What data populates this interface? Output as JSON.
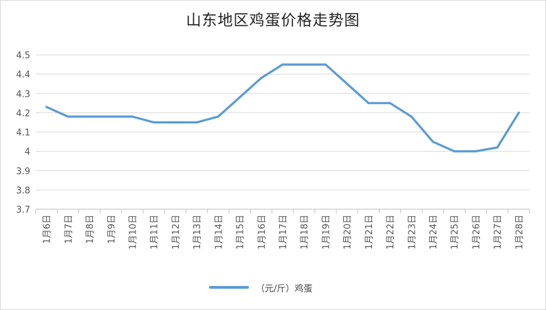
{
  "chart_data": {
    "type": "line",
    "title": "山东地区鸡蛋价格走势图",
    "xlabel": "",
    "ylabel": "",
    "categories": [
      "1月6日",
      "1月7日",
      "1月8日",
      "1月9日",
      "1月10日",
      "1月11日",
      "1月12日",
      "1月13日",
      "1月14日",
      "1月15日",
      "1月16日",
      "1月17日",
      "1月18日",
      "1月19日",
      "1月20日",
      "1月21日",
      "1月22日",
      "1月23日",
      "1月24日",
      "1月25日",
      "1月26日",
      "1月27日",
      "1月28日"
    ],
    "series": [
      {
        "name": "（元/斤）鸡蛋",
        "values": [
          4.23,
          4.18,
          4.18,
          4.18,
          4.18,
          4.15,
          4.15,
          4.15,
          4.18,
          4.28,
          4.38,
          4.45,
          4.45,
          4.45,
          4.35,
          4.25,
          4.25,
          4.18,
          4.05,
          4.0,
          4.0,
          4.02,
          4.2
        ],
        "color": "#5b9bd5"
      }
    ],
    "ylim": [
      3.7,
      4.5
    ],
    "yticks": [
      "3.7",
      "3.8",
      "3.9",
      "4",
      "4.1",
      "4.2",
      "4.3",
      "4.4",
      "4.5"
    ],
    "grid": true,
    "legend": "bottom"
  }
}
